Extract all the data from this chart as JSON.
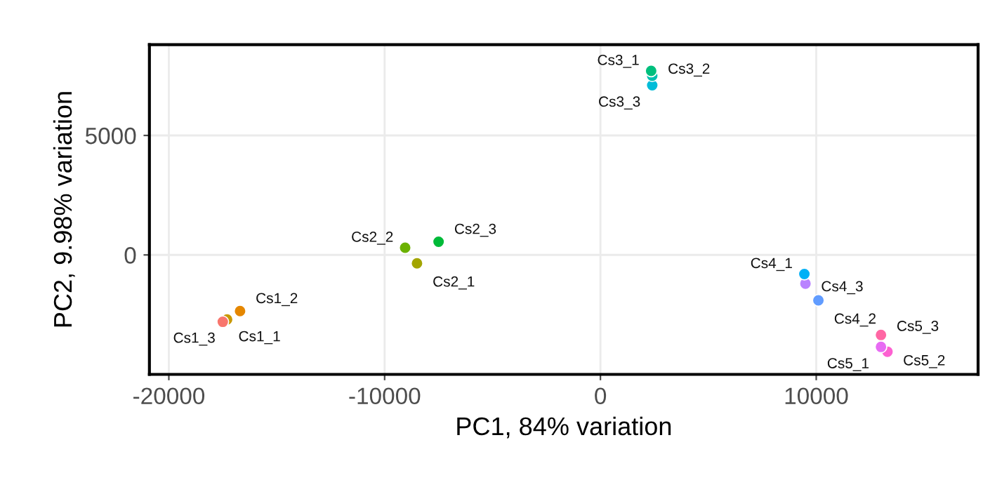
{
  "chart_data": {
    "type": "scatter",
    "xlabel": "PC1, 84% variation",
    "ylabel": "PC2, 9.98% variation",
    "x": [
      -17500,
      -16700,
      -17300,
      -8500,
      -9050,
      -7500,
      2350,
      2400,
      2400,
      9450,
      10100,
      9500,
      13000,
      13300,
      13000
    ],
    "values": [
      -2800,
      -2350,
      -2700,
      -350,
      300,
      550,
      7700,
      7500,
      7100,
      -800,
      -1900,
      -1200,
      -3850,
      -4050,
      -3350
    ],
    "colors": [
      "#F8766D",
      "#E58700",
      "#C99800",
      "#A3A500",
      "#6BB100",
      "#00BA38",
      "#00BF7D",
      "#00C0AF",
      "#00BCD8",
      "#00B0F6",
      "#619CFF",
      "#B983FF",
      "#E76BF3",
      "#FD61D1",
      "#FF67A4"
    ],
    "annotations": [
      {
        "text": "Cs1_1",
        "x": -17500,
        "y": -2800
      },
      {
        "text": "Cs1_2",
        "x": -16700,
        "y": -2350
      },
      {
        "text": "Cs1_3",
        "x": -17300,
        "y": -2700
      },
      {
        "text": "Cs2_1",
        "x": -8500,
        "y": -350
      },
      {
        "text": "Cs2_2",
        "x": -9050,
        "y": 300
      },
      {
        "text": "Cs2_3",
        "x": -7500,
        "y": 550
      },
      {
        "text": "Cs3_1",
        "x": 2350,
        "y": 7700
      },
      {
        "text": "Cs3_2",
        "x": 2400,
        "y": 7500
      },
      {
        "text": "Cs3_3",
        "x": 2400,
        "y": 7100
      },
      {
        "text": "Cs4_1",
        "x": 9450,
        "y": -800
      },
      {
        "text": "Cs4_2",
        "x": 10100,
        "y": -1900
      },
      {
        "text": "Cs4_3",
        "x": 9500,
        "y": -1200
      },
      {
        "text": "Cs5_1",
        "x": 13000,
        "y": -3850
      },
      {
        "text": "Cs5_2",
        "x": 13300,
        "y": -4050
      },
      {
        "text": "Cs5_3",
        "x": 13000,
        "y": -3350
      }
    ],
    "xlim": [
      -20900,
      17500
    ],
    "ylim": [
      -5000,
      8800
    ],
    "xticks": [
      -20000,
      -10000,
      0,
      10000
    ],
    "yticks": [
      0,
      5000
    ],
    "grid": true,
    "marker": "circle"
  }
}
